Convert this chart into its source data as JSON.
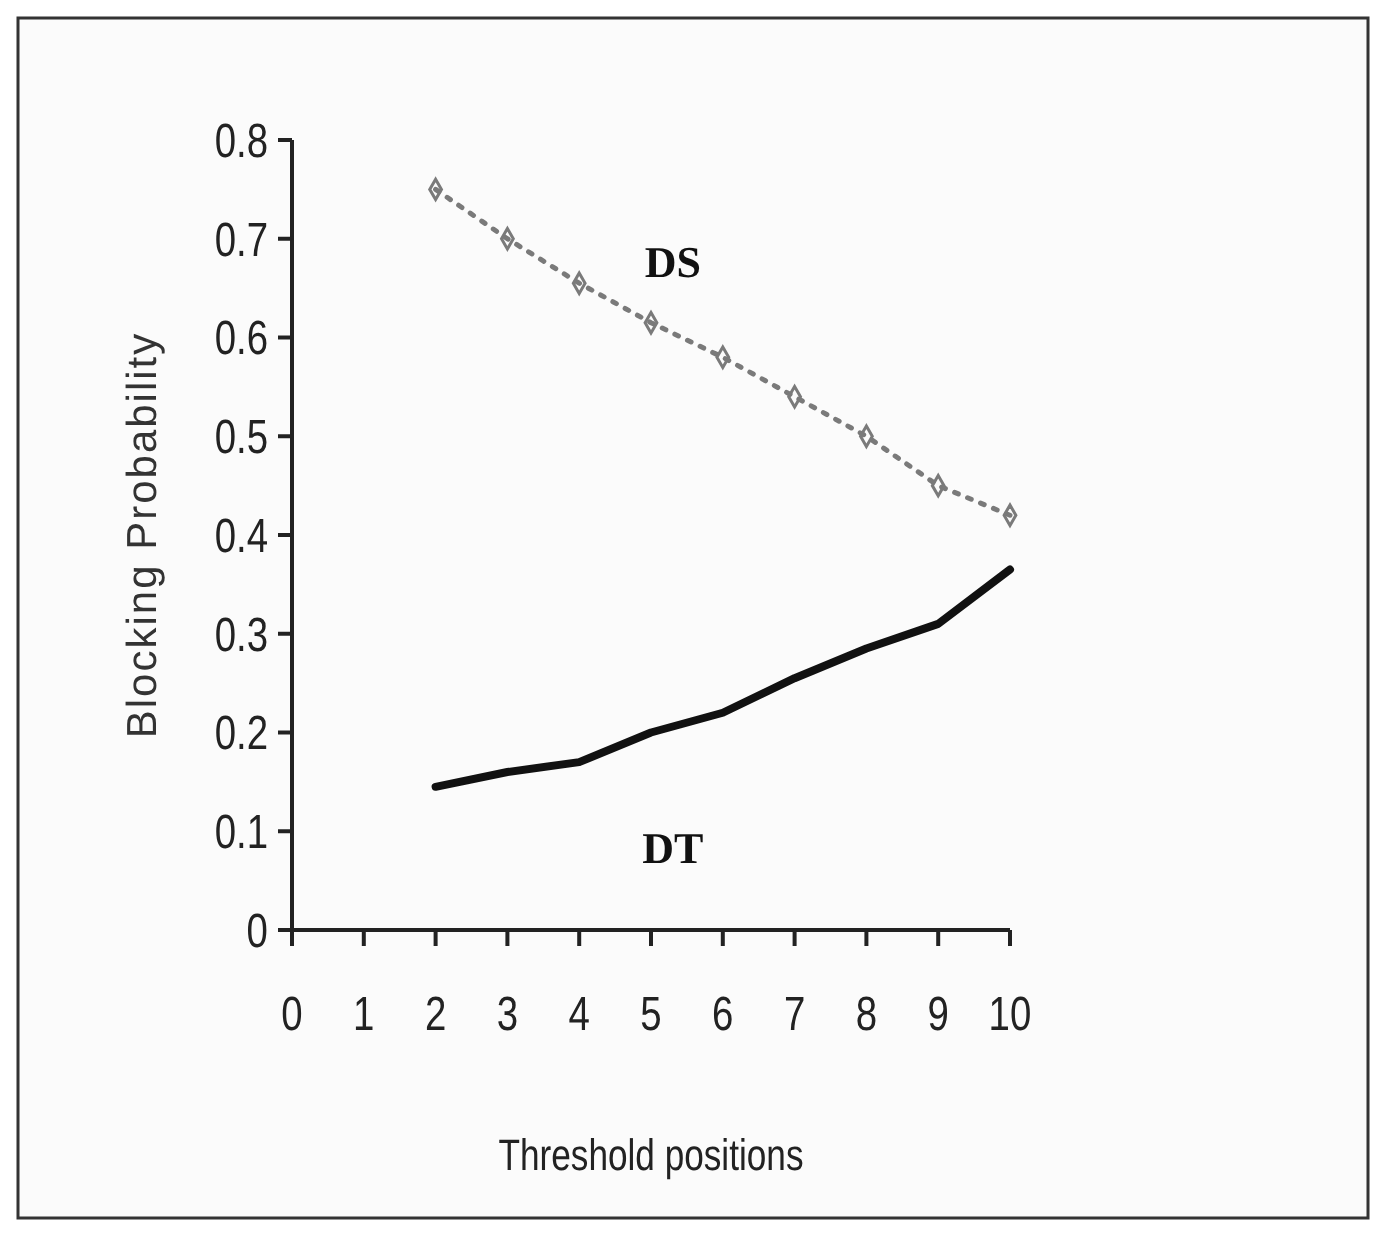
{
  "chart_data": {
    "type": "line",
    "xlabel": "Threshold positions",
    "ylabel": "Blocking Probability",
    "x": [
      2,
      3,
      4,
      5,
      6,
      7,
      8,
      9,
      10
    ],
    "series": [
      {
        "name": "DS",
        "color": "#7a7a7a",
        "values": [
          0.75,
          0.7,
          0.655,
          0.615,
          0.58,
          0.54,
          0.5,
          0.45,
          0.42
        ],
        "line_style": "dotted",
        "marker": "diamond"
      },
      {
        "name": "DT",
        "color": "#111111",
        "values": [
          0.145,
          0.16,
          0.17,
          0.2,
          0.22,
          0.255,
          0.285,
          0.31,
          0.365
        ],
        "line_style": "solid",
        "marker": "none"
      }
    ],
    "xlim": [
      0,
      10
    ],
    "xticks": [
      0,
      1,
      2,
      3,
      4,
      5,
      6,
      7,
      8,
      9,
      10
    ],
    "ylim": [
      0,
      0.8
    ],
    "yticks": [
      0,
      0.1,
      0.2,
      0.3,
      0.4,
      0.5,
      0.6,
      0.7,
      0.8
    ],
    "grid": false
  }
}
